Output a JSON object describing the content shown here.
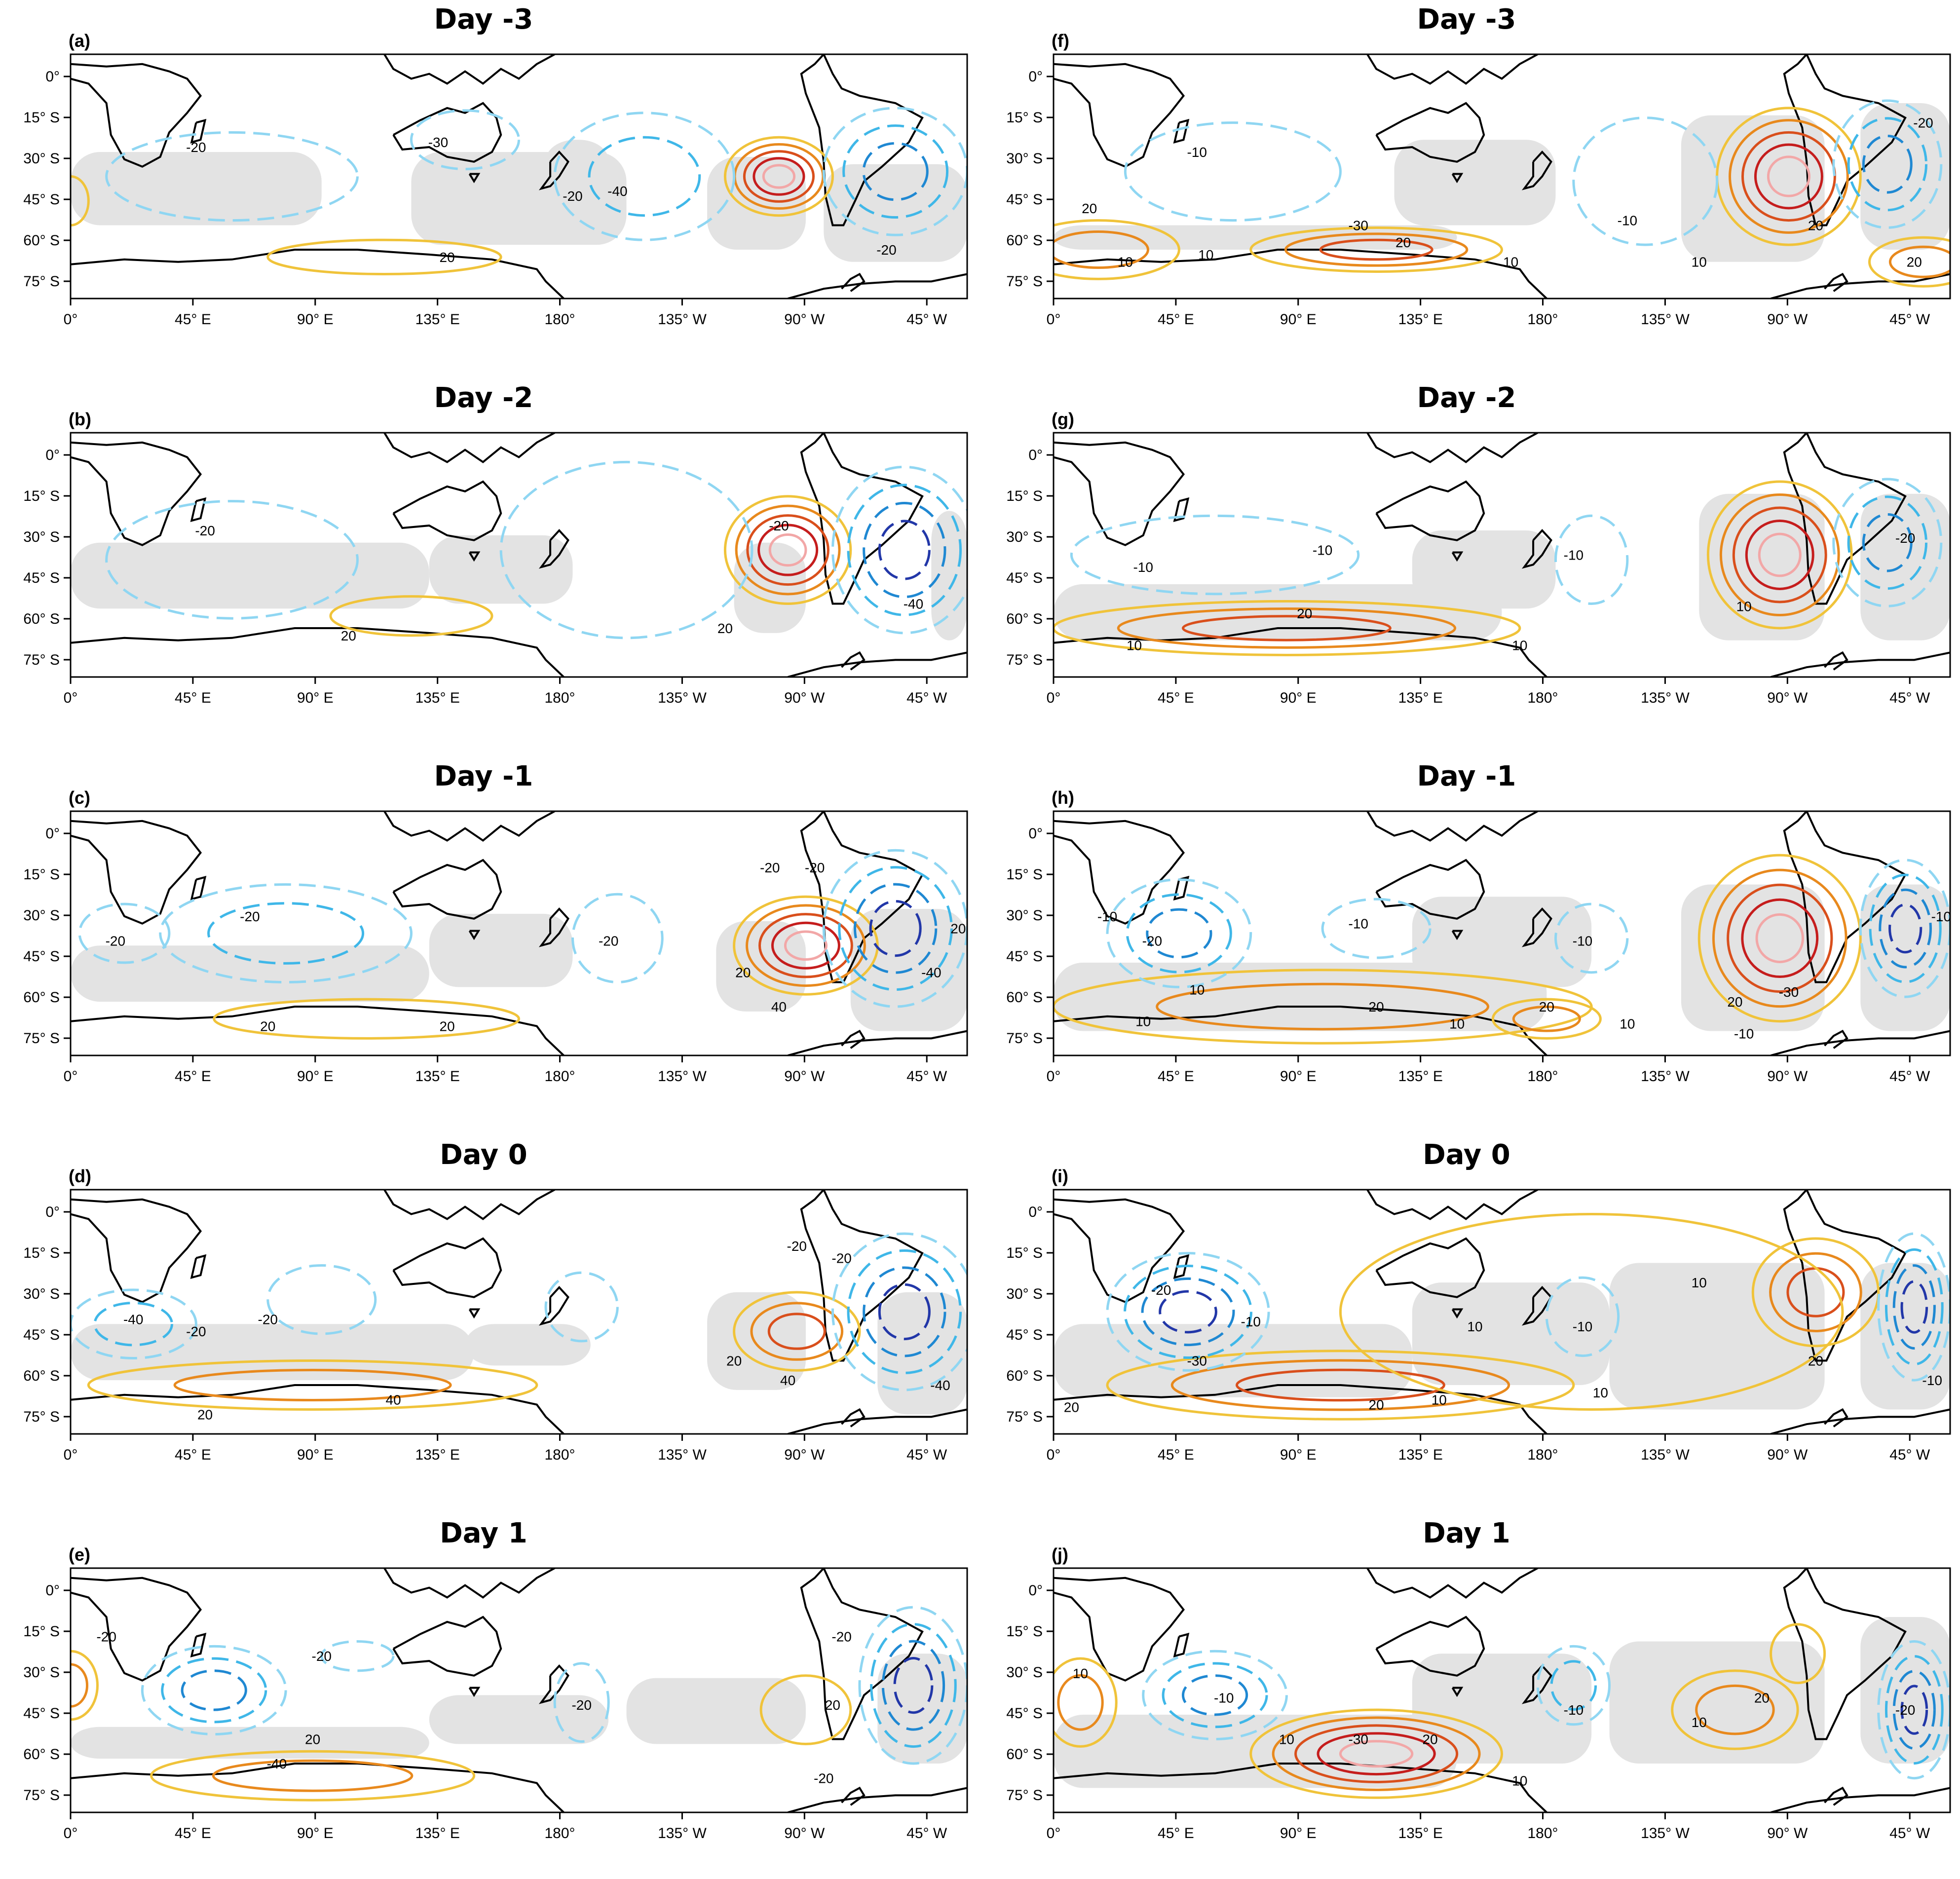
{
  "colors": {
    "warm": [
      "#f0c33a",
      "#e8891d",
      "#d94f1c",
      "#c51d1d",
      "#f2a7a7"
    ],
    "cool": [
      "#8fd6f2",
      "#3fb7e8",
      "#1f88d2",
      "#2237a8"
    ],
    "shade": "#e3e3e3",
    "coast": "#000000"
  },
  "axes": {
    "lon_labels": [
      "0°",
      "45° E",
      "90° E",
      "135° E",
      "180°",
      "135° W",
      "90° W",
      "45° W"
    ],
    "lat_labels": [
      "0°",
      "15° S",
      "30° S",
      "45° S",
      "60° S",
      "75° S"
    ]
  },
  "panels": [
    {
      "label": "(a)",
      "title": "Day -3",
      "labels": [
        [
          "-20",
          0.14,
          0.4
        ],
        [
          "-30",
          0.41,
          0.38
        ],
        [
          "-20",
          0.56,
          0.6
        ],
        [
          "-40",
          0.61,
          0.58
        ],
        [
          "-20",
          0.91,
          0.82
        ],
        [
          "20",
          0.42,
          0.85
        ]
      ]
    },
    {
      "label": "(b)",
      "title": "Day -2",
      "labels": [
        [
          "-20",
          0.15,
          0.42
        ],
        [
          "-20",
          0.79,
          0.4
        ],
        [
          "20",
          0.73,
          0.82
        ],
        [
          "-40",
          0.94,
          0.72
        ],
        [
          "20",
          0.31,
          0.85
        ]
      ]
    },
    {
      "label": "(c)",
      "title": "Day -1",
      "labels": [
        [
          "-20",
          0.05,
          0.55
        ],
        [
          "-20",
          0.2,
          0.45
        ],
        [
          "-20",
          0.6,
          0.55
        ],
        [
          "-20",
          0.78,
          0.25
        ],
        [
          "-20",
          0.83,
          0.25
        ],
        [
          "20",
          0.75,
          0.68
        ],
        [
          "40",
          0.79,
          0.82
        ],
        [
          "-40",
          0.96,
          0.68
        ],
        [
          "20",
          0.99,
          0.5
        ],
        [
          "20",
          0.42,
          0.9
        ],
        [
          "20",
          0.22,
          0.9
        ]
      ]
    },
    {
      "label": "(d)",
      "title": "Day 0",
      "labels": [
        [
          "-40",
          0.07,
          0.55
        ],
        [
          "-20",
          0.14,
          0.6
        ],
        [
          "-20",
          0.22,
          0.55
        ],
        [
          "-20",
          0.81,
          0.25
        ],
        [
          "-20",
          0.86,
          0.3
        ],
        [
          "20",
          0.74,
          0.72
        ],
        [
          "40",
          0.8,
          0.8
        ],
        [
          "-40",
          0.97,
          0.82
        ],
        [
          "40",
          0.36,
          0.88
        ],
        [
          "20",
          0.15,
          0.94
        ]
      ]
    },
    {
      "label": "(e)",
      "title": "Day 1",
      "labels": [
        [
          "-20",
          0.04,
          0.3
        ],
        [
          "-20",
          0.28,
          0.38
        ],
        [
          "-20",
          0.57,
          0.58
        ],
        [
          "-20",
          0.86,
          0.3
        ],
        [
          "20",
          0.85,
          0.58
        ],
        [
          "-20",
          0.84,
          0.88
        ],
        [
          "20",
          0.27,
          0.72
        ],
        [
          "-40",
          0.23,
          0.82
        ]
      ]
    },
    {
      "label": "(f)",
      "title": "Day -3",
      "labels": [
        [
          "-10",
          0.16,
          0.42
        ],
        [
          "-10",
          0.64,
          0.7
        ],
        [
          "20",
          0.04,
          0.65
        ],
        [
          "10",
          0.08,
          0.87
        ],
        [
          "10",
          0.17,
          0.84
        ],
        [
          "-30",
          0.34,
          0.72
        ],
        [
          "20",
          0.39,
          0.79
        ],
        [
          "10",
          0.51,
          0.87
        ],
        [
          "20",
          0.85,
          0.72
        ],
        [
          "10",
          0.72,
          0.87
        ],
        [
          "20",
          0.96,
          0.87
        ],
        [
          "-20",
          0.97,
          0.3
        ]
      ]
    },
    {
      "label": "(g)",
      "title": "Day -2",
      "labels": [
        [
          "-10",
          0.3,
          0.5
        ],
        [
          "-10",
          0.1,
          0.57
        ],
        [
          "-10",
          0.58,
          0.52
        ],
        [
          "20",
          0.28,
          0.76
        ],
        [
          "10",
          0.09,
          0.89
        ],
        [
          "10",
          0.52,
          0.89
        ],
        [
          "10",
          0.77,
          0.73
        ],
        [
          "-20",
          0.95,
          0.45
        ]
      ]
    },
    {
      "label": "(h)",
      "title": "Day -1",
      "labels": [
        [
          "-10",
          0.06,
          0.45
        ],
        [
          "-20",
          0.11,
          0.55
        ],
        [
          "-10",
          0.34,
          0.48
        ],
        [
          "-10",
          0.59,
          0.55
        ],
        [
          "10",
          0.16,
          0.75
        ],
        [
          "10",
          0.1,
          0.88
        ],
        [
          "20",
          0.36,
          0.82
        ],
        [
          "10",
          0.45,
          0.89
        ],
        [
          "20",
          0.55,
          0.82
        ],
        [
          "10",
          0.64,
          0.89
        ],
        [
          "20",
          0.76,
          0.8
        ],
        [
          "-30",
          0.82,
          0.76
        ],
        [
          "-10",
          0.77,
          0.93
        ],
        [
          "-10",
          0.99,
          0.45
        ]
      ]
    },
    {
      "label": "(i)",
      "title": "Day 0",
      "labels": [
        [
          "-20",
          0.12,
          0.43
        ],
        [
          "-30",
          0.16,
          0.72
        ],
        [
          "-10",
          0.22,
          0.56
        ],
        [
          "-10",
          0.59,
          0.58
        ],
        [
          "10",
          0.47,
          0.58
        ],
        [
          "10",
          0.72,
          0.4
        ],
        [
          "20",
          0.85,
          0.72
        ],
        [
          "20",
          0.36,
          0.9
        ],
        [
          "10",
          0.43,
          0.88
        ],
        [
          "10",
          0.61,
          0.85
        ],
        [
          "20",
          0.02,
          0.91
        ],
        [
          "-10",
          0.98,
          0.8
        ]
      ]
    },
    {
      "label": "(j)",
      "title": "Day 1",
      "labels": [
        [
          "10",
          0.03,
          0.45
        ],
        [
          "-10",
          0.19,
          0.55
        ],
        [
          "10",
          0.26,
          0.72
        ],
        [
          "-30",
          0.34,
          0.72
        ],
        [
          "20",
          0.42,
          0.72
        ],
        [
          "10",
          0.52,
          0.89
        ],
        [
          "-10",
          0.58,
          0.6
        ],
        [
          "20",
          0.79,
          0.55
        ],
        [
          "10",
          0.72,
          0.65
        ],
        [
          "-20",
          0.95,
          0.6
        ]
      ]
    }
  ]
}
